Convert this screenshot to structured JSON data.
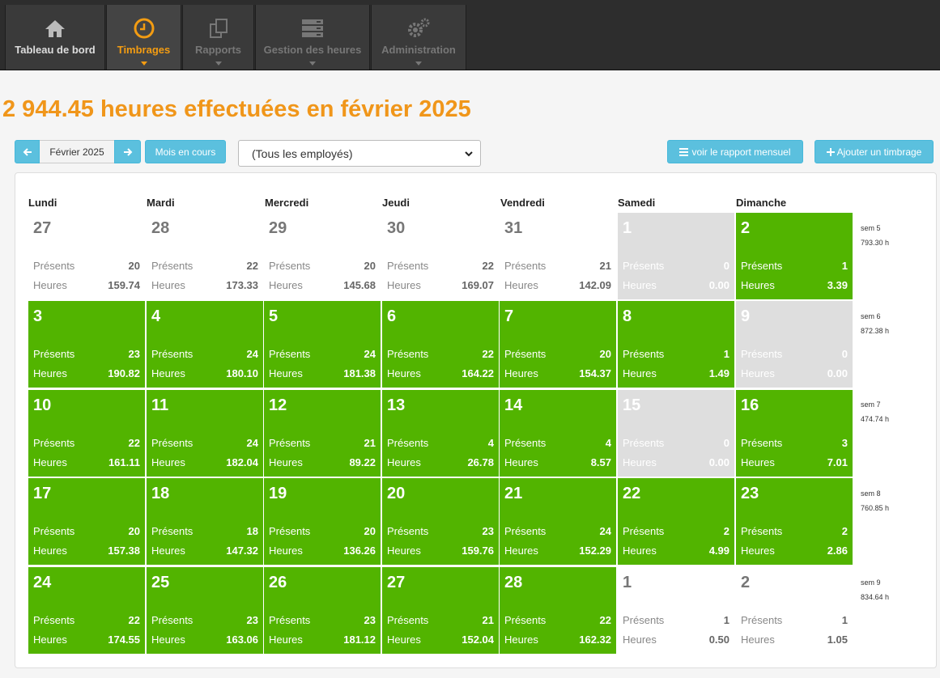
{
  "nav": [
    {
      "label": "Tableau de bord",
      "icon": "home-icon",
      "state": "home"
    },
    {
      "label": "Timbrages",
      "icon": "clock-icon",
      "state": "active"
    },
    {
      "label": "Rapports",
      "icon": "documents-icon",
      "state": "dim"
    },
    {
      "label": "Gestion des heures",
      "icon": "server-icon",
      "state": "dim"
    },
    {
      "label": "Administration",
      "icon": "gears-icon",
      "state": "dim"
    }
  ],
  "title": "2 944.45 heures effectuées en février 2025",
  "toolbar": {
    "month": "Février 2025",
    "current_month_label": "Mois en cours",
    "employee_select": "(Tous les employés)",
    "report_label": "voir le rapport mensuel",
    "add_label": "Ajouter un timbrage"
  },
  "day_names": [
    "Lundi",
    "Mardi",
    "Mercredi",
    "Jeudi",
    "Vendredi",
    "Samedi",
    "Dimanche"
  ],
  "stat_labels": {
    "present": "Présents",
    "hours": "Heures"
  },
  "weeks": [
    {
      "label": "sem 5",
      "total": "793.30 h",
      "days": [
        {
          "day": "27",
          "present": "20",
          "hours": "159.74",
          "kind": "out"
        },
        {
          "day": "28",
          "present": "22",
          "hours": "173.33",
          "kind": "out"
        },
        {
          "day": "29",
          "present": "20",
          "hours": "145.68",
          "kind": "out"
        },
        {
          "day": "30",
          "present": "22",
          "hours": "169.07",
          "kind": "out"
        },
        {
          "day": "31",
          "present": "21",
          "hours": "142.09",
          "kind": "out"
        },
        {
          "day": "1",
          "present": "0",
          "hours": "0.00",
          "kind": "grey"
        },
        {
          "day": "2",
          "present": "1",
          "hours": "3.39",
          "kind": "green"
        }
      ]
    },
    {
      "label": "sem 6",
      "total": "872.38 h",
      "days": [
        {
          "day": "3",
          "present": "23",
          "hours": "190.82",
          "kind": "green"
        },
        {
          "day": "4",
          "present": "24",
          "hours": "180.10",
          "kind": "green"
        },
        {
          "day": "5",
          "present": "24",
          "hours": "181.38",
          "kind": "green"
        },
        {
          "day": "6",
          "present": "22",
          "hours": "164.22",
          "kind": "green"
        },
        {
          "day": "7",
          "present": "20",
          "hours": "154.37",
          "kind": "green"
        },
        {
          "day": "8",
          "present": "1",
          "hours": "1.49",
          "kind": "green"
        },
        {
          "day": "9",
          "present": "0",
          "hours": "0.00",
          "kind": "grey"
        }
      ]
    },
    {
      "label": "sem 7",
      "total": "474.74 h",
      "days": [
        {
          "day": "10",
          "present": "22",
          "hours": "161.11",
          "kind": "green"
        },
        {
          "day": "11",
          "present": "24",
          "hours": "182.04",
          "kind": "green"
        },
        {
          "day": "12",
          "present": "21",
          "hours": "89.22",
          "kind": "green"
        },
        {
          "day": "13",
          "present": "4",
          "hours": "26.78",
          "kind": "green"
        },
        {
          "day": "14",
          "present": "4",
          "hours": "8.57",
          "kind": "green"
        },
        {
          "day": "15",
          "present": "0",
          "hours": "0.00",
          "kind": "grey"
        },
        {
          "day": "16",
          "present": "3",
          "hours": "7.01",
          "kind": "green"
        }
      ]
    },
    {
      "label": "sem 8",
      "total": "760.85 h",
      "days": [
        {
          "day": "17",
          "present": "20",
          "hours": "157.38",
          "kind": "green"
        },
        {
          "day": "18",
          "present": "18",
          "hours": "147.32",
          "kind": "green"
        },
        {
          "day": "19",
          "present": "20",
          "hours": "136.26",
          "kind": "green"
        },
        {
          "day": "20",
          "present": "23",
          "hours": "159.76",
          "kind": "green"
        },
        {
          "day": "21",
          "present": "24",
          "hours": "152.29",
          "kind": "green"
        },
        {
          "day": "22",
          "present": "2",
          "hours": "4.99",
          "kind": "green"
        },
        {
          "day": "23",
          "present": "2",
          "hours": "2.86",
          "kind": "green"
        }
      ]
    },
    {
      "label": "sem 9",
      "total": "834.64 h",
      "days": [
        {
          "day": "24",
          "present": "22",
          "hours": "174.55",
          "kind": "green"
        },
        {
          "day": "25",
          "present": "23",
          "hours": "163.06",
          "kind": "green"
        },
        {
          "day": "26",
          "present": "23",
          "hours": "181.12",
          "kind": "green"
        },
        {
          "day": "27",
          "present": "21",
          "hours": "152.04",
          "kind": "green"
        },
        {
          "day": "28",
          "present": "22",
          "hours": "162.32",
          "kind": "green"
        },
        {
          "day": "1",
          "present": "1",
          "hours": "0.50",
          "kind": "out"
        },
        {
          "day": "2",
          "present": "1",
          "hours": "1.05",
          "kind": "out"
        }
      ]
    }
  ],
  "colors": {
    "accent": "#f0961a",
    "green": "#52b400",
    "grey": "#dedede",
    "button": "#5bc0de"
  }
}
